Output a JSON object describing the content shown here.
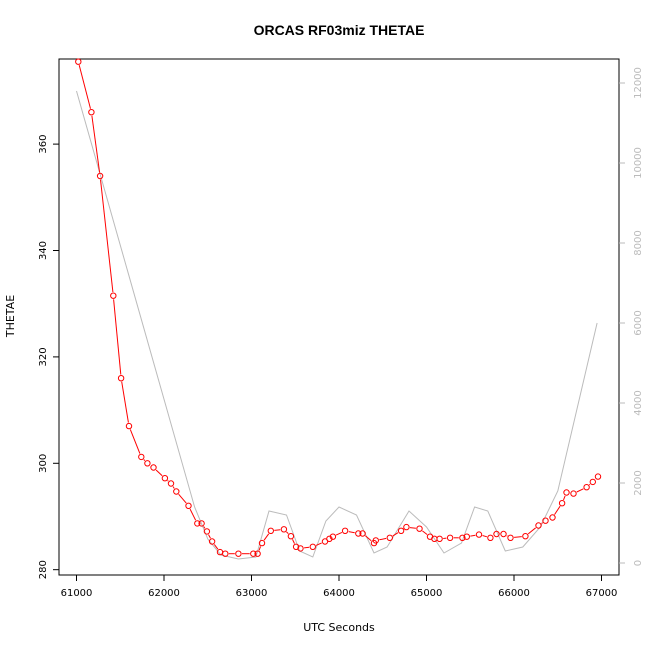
{
  "chart_data": {
    "type": "scatter",
    "title": "ORCAS RF03miz THETAE",
    "xlabel": "UTC Seconds",
    "ylabel": "THETAE",
    "xlim": [
      60800,
      67200
    ],
    "ylim": [
      279,
      376
    ],
    "x_ticks": [
      61000,
      62000,
      63000,
      64000,
      65000,
      66000,
      67000
    ],
    "y_ticks": [
      280,
      300,
      320,
      340,
      360
    ],
    "y2lim": [
      -300,
      12600
    ],
    "y2_ticks": [
      0,
      2000,
      4000,
      6000,
      8000,
      10000,
      12000
    ],
    "grid": false,
    "colors": {
      "primary": "#ff0000",
      "secondary": "#bbbbbb"
    },
    "series": [
      {
        "values_x": [
          61020,
          61170,
          61270,
          61420,
          61510,
          61600,
          61740,
          61810,
          61880,
          62010,
          62080,
          62140,
          62280,
          62380,
          62430,
          62490,
          62550,
          62640,
          62700,
          62850,
          63020,
          63070,
          63120,
          63220,
          63370,
          63450,
          63510,
          63560,
          63700,
          63840,
          63890,
          63930,
          64070,
          64220,
          64270,
          64400,
          64420,
          64580,
          64710,
          64770,
          64920,
          65040,
          65090,
          65150,
          65270,
          65410,
          65460,
          65600,
          65730,
          65800,
          65880,
          65960,
          66130,
          66280,
          66360,
          66440,
          66550,
          66600,
          66680,
          66830,
          66900,
          66960
        ],
        "values": [
          375.5,
          366.0,
          354.0,
          331.5,
          316.0,
          307.0,
          301.2,
          300.0,
          299.2,
          297.2,
          296.2,
          294.7,
          292.0,
          288.7,
          288.7,
          287.2,
          285.3,
          283.3,
          283.0,
          283.0,
          283.0,
          283.0,
          285.0,
          287.3,
          287.6,
          286.3,
          284.3,
          284.0,
          284.3,
          285.3,
          285.8,
          286.2,
          287.3,
          286.8,
          286.8,
          285.0,
          285.5,
          286.0,
          287.3,
          288.0,
          287.7,
          286.2,
          285.8,
          285.8,
          286.0,
          286.0,
          286.2,
          286.6,
          286.0,
          286.7,
          286.7,
          286.0,
          286.3,
          288.3,
          289.2,
          289.8,
          292.5,
          294.5,
          294.3,
          295.5,
          296.5,
          297.5
        ]
      },
      {
        "values_x": [
          61000,
          62350,
          62500,
          62650,
          62850,
          63050,
          63200,
          63400,
          63550,
          63700,
          63850,
          64000,
          64200,
          64400,
          64550,
          64800,
          65000,
          65200,
          65400,
          65550,
          65700,
          65900,
          66100,
          66300,
          66500,
          66950
        ],
        "values": [
          11800,
          1400,
          600,
          200,
          100,
          150,
          1300,
          1200,
          300,
          150,
          1050,
          1400,
          1200,
          250,
          400,
          1300,
          900,
          250,
          500,
          1400,
          1300,
          300,
          400,
          900,
          1800,
          6000
        ]
      }
    ]
  }
}
